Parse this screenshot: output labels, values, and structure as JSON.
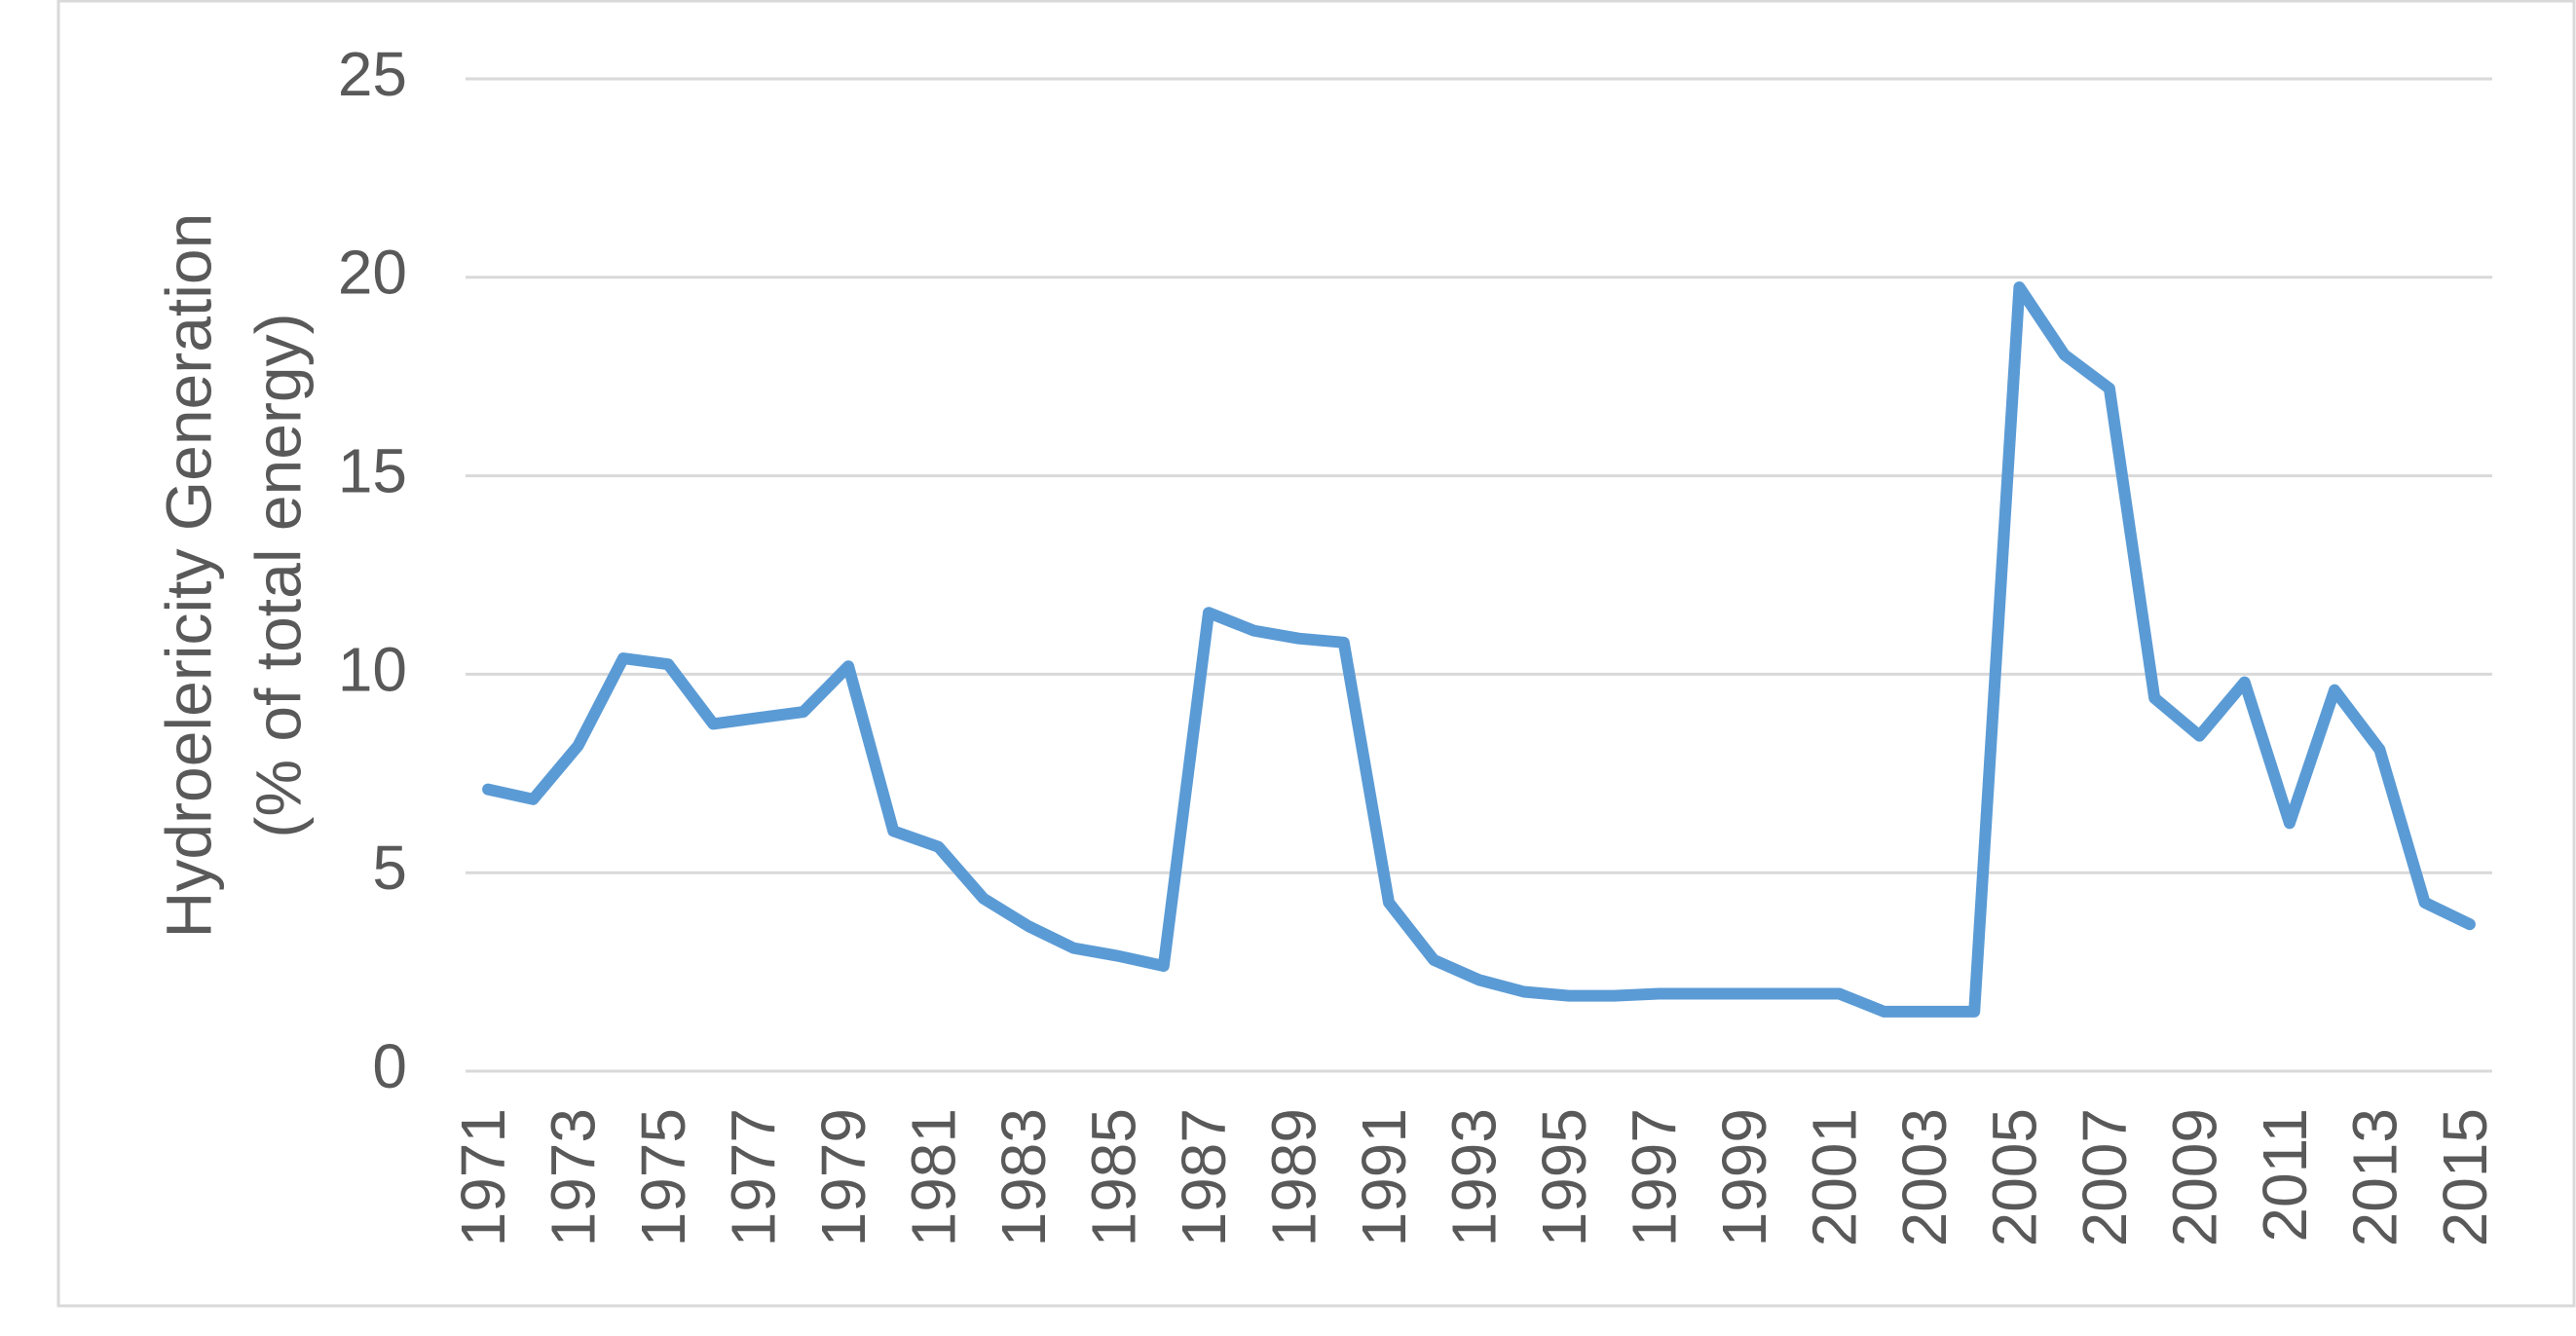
{
  "chart_data": {
    "type": "line",
    "ylabel": [
      "Hydroelericity Generation",
      "(% of total energy)"
    ],
    "categories": [
      "1971",
      null,
      "1973",
      null,
      "1975",
      null,
      "1977",
      null,
      "1979",
      null,
      "1981",
      null,
      "1983",
      null,
      "1985",
      null,
      "1987",
      null,
      "1989",
      null,
      "1991",
      null,
      "1993",
      null,
      "1995",
      null,
      "1997",
      null,
      "1999",
      null,
      "2001",
      null,
      "2003",
      null,
      "2005",
      null,
      "2007",
      null,
      "2009",
      null,
      "2011",
      null,
      "2013",
      null,
      "2015"
    ],
    "values": [
      7.1,
      6.85,
      8.2,
      10.4,
      10.25,
      8.75,
      8.9,
      9.05,
      10.2,
      6.05,
      5.65,
      4.35,
      3.65,
      3.1,
      2.9,
      2.65,
      11.55,
      11.1,
      10.9,
      10.8,
      4.25,
      2.8,
      2.3,
      2.0,
      1.9,
      1.9,
      1.95,
      1.95,
      1.95,
      1.95,
      1.95,
      1.5,
      1.5,
      1.5,
      19.75,
      18.05,
      17.2,
      9.4,
      8.45,
      9.8,
      6.25,
      9.6,
      8.1,
      4.25,
      3.7
    ],
    "color": "#5b9bd5",
    "ylim": [
      0,
      25
    ],
    "yticks": [
      0,
      5,
      10,
      15,
      20,
      25
    ],
    "grid": true
  }
}
